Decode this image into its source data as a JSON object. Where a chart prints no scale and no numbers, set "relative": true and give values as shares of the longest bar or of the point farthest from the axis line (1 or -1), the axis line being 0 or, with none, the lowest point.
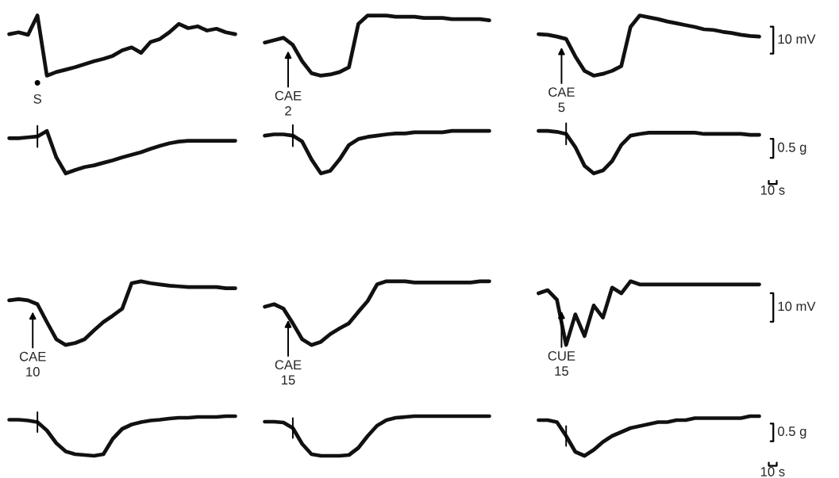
{
  "chart_data": [
    {
      "type": "line",
      "relative": true,
      "categories": [
        null,
        null,
        null,
        null,
        null,
        null,
        null,
        null,
        null,
        null,
        null,
        null,
        null,
        null,
        null,
        null,
        null,
        null,
        null,
        null,
        null,
        null,
        null,
        null,
        null
      ],
      "annotations": [
        "S"
      ],
      "series": [
        {
          "color": "#111111",
          "values": [
            0.69,
            0.72,
            0.68,
            1,
            0,
            0.06,
            0.1,
            0.14,
            0.19,
            0.24,
            0.28,
            0.33,
            0.42,
            0.47,
            0.38,
            0.56,
            0.61,
            0.72,
            0.86,
            0.79,
            0.82,
            0.75,
            0.78,
            0.72,
            0.69
          ]
        }
      ]
    },
    {
      "type": "line",
      "relative": true,
      "categories": [
        null,
        null,
        null,
        null,
        null,
        null,
        null,
        null,
        null,
        null,
        null,
        null,
        null,
        null,
        null,
        null,
        null,
        null,
        null,
        null,
        null,
        null,
        null,
        null,
        null
      ],
      "annotations": [
        "CAE\n2"
      ],
      "series": [
        {
          "color": "#111111",
          "values": [
            0.55,
            0.59,
            0.63,
            0.51,
            0.24,
            0.04,
            0,
            0.02,
            0.06,
            0.14,
            0.86,
            1,
            1,
            1,
            0.98,
            0.98,
            0.98,
            0.96,
            0.96,
            0.96,
            0.94,
            0.94,
            0.94,
            0.94,
            0.92
          ]
        }
      ]
    },
    {
      "type": "line",
      "relative": true,
      "categories": [
        null,
        null,
        null,
        null,
        null,
        null,
        null,
        null,
        null,
        null,
        null,
        null,
        null,
        null,
        null,
        null,
        null,
        null,
        null,
        null,
        null,
        null,
        null,
        null,
        null
      ],
      "annotations": [
        "CAE\n5"
      ],
      "ylabel": "10 mV",
      "series": [
        {
          "color": "#111111",
          "values": [
            0.69,
            0.68,
            0.65,
            0.61,
            0.32,
            0.08,
            0,
            0.03,
            0.08,
            0.16,
            0.81,
            1,
            0.97,
            0.94,
            0.9,
            0.87,
            0.84,
            0.81,
            0.77,
            0.76,
            0.73,
            0.71,
            0.68,
            0.66,
            0.65
          ]
        }
      ]
    },
    {
      "type": "line",
      "relative": true,
      "categories": [
        null,
        null,
        null,
        null,
        null,
        null,
        null,
        null,
        null,
        null,
        null,
        null,
        null,
        null,
        null,
        null,
        null,
        null,
        null,
        null,
        null,
        null,
        null,
        null,
        null
      ],
      "series": [
        {
          "color": "#111111",
          "values": [
            0.83,
            0.83,
            0.85,
            0.87,
            1,
            0.38,
            0,
            0.08,
            0.15,
            0.19,
            0.25,
            0.31,
            0.38,
            0.44,
            0.5,
            0.58,
            0.65,
            0.71,
            0.75,
            0.77,
            0.77,
            0.77,
            0.77,
            0.77,
            0.77
          ]
        }
      ]
    },
    {
      "type": "line",
      "relative": true,
      "categories": [
        null,
        null,
        null,
        null,
        null,
        null,
        null,
        null,
        null,
        null,
        null,
        null,
        null,
        null,
        null,
        null,
        null,
        null,
        null,
        null,
        null,
        null,
        null,
        null,
        null
      ],
      "series": [
        {
          "color": "#111111",
          "values": [
            0.89,
            0.92,
            0.92,
            0.89,
            0.75,
            0.33,
            0,
            0.06,
            0.33,
            0.67,
            0.81,
            0.86,
            0.89,
            0.92,
            0.94,
            0.94,
            0.97,
            0.97,
            0.97,
            0.97,
            1,
            1,
            1,
            1,
            1
          ]
        }
      ]
    },
    {
      "type": "line",
      "relative": true,
      "categories": [
        null,
        null,
        null,
        null,
        null,
        null,
        null,
        null,
        null,
        null,
        null,
        null,
        null,
        null,
        null,
        null,
        null,
        null,
        null,
        null,
        null,
        null,
        null,
        null,
        null
      ],
      "ylabel": "0.5 g",
      "xlabel": "10 s",
      "series": [
        {
          "color": "#111111",
          "values": [
            1,
            1,
            0.98,
            0.93,
            0.62,
            0.18,
            0,
            0.07,
            0.29,
            0.67,
            0.89,
            0.93,
            0.96,
            0.96,
            0.96,
            0.96,
            0.96,
            0.96,
            0.93,
            0.93,
            0.93,
            0.93,
            0.93,
            0.91,
            0.91
          ]
        }
      ]
    },
    {
      "type": "line",
      "relative": true,
      "categories": [
        null,
        null,
        null,
        null,
        null,
        null,
        null,
        null,
        null,
        null,
        null,
        null,
        null,
        null,
        null,
        null,
        null,
        null,
        null,
        null,
        null,
        null,
        null,
        null,
        null
      ],
      "annotations": [
        "CAE\n10"
      ],
      "series": [
        {
          "color": "#111111",
          "values": [
            0.7,
            0.72,
            0.7,
            0.64,
            0.36,
            0.09,
            0,
            0.03,
            0.09,
            0.23,
            0.36,
            0.46,
            0.57,
            0.97,
            1,
            0.97,
            0.95,
            0.93,
            0.92,
            0.91,
            0.91,
            0.91,
            0.91,
            0.89,
            0.89
          ]
        }
      ]
    },
    {
      "type": "line",
      "relative": true,
      "categories": [
        null,
        null,
        null,
        null,
        null,
        null,
        null,
        null,
        null,
        null,
        null,
        null,
        null,
        null,
        null,
        null,
        null,
        null,
        null,
        null,
        null,
        null,
        null,
        null,
        null
      ],
      "annotations": [
        "CAE\n15"
      ],
      "series": [
        {
          "color": "#111111",
          "values": [
            0.6,
            0.64,
            0.57,
            0.34,
            0.09,
            0,
            0.05,
            0.17,
            0.26,
            0.34,
            0.52,
            0.69,
            0.95,
            1,
            1,
            1,
            0.98,
            0.98,
            0.98,
            0.98,
            0.98,
            0.98,
            0.98,
            1,
            1
          ]
        }
      ]
    },
    {
      "type": "line",
      "relative": true,
      "categories": [
        null,
        null,
        null,
        null,
        null,
        null,
        null,
        null,
        null,
        null,
        null,
        null,
        null,
        null,
        null,
        null,
        null,
        null,
        null,
        null,
        null,
        null,
        null,
        null,
        null
      ],
      "annotations": [
        "CUE\n15"
      ],
      "ylabel": "10 mV",
      "series": [
        {
          "color": "#111111",
          "values": [
            0.81,
            0.86,
            0.71,
            0,
            0.48,
            0.14,
            0.62,
            0.43,
            0.9,
            0.81,
            1,
            0.95,
            0.95,
            0.95,
            0.95,
            0.95,
            0.95,
            0.95,
            0.95,
            0.95,
            0.95,
            0.95,
            0.95,
            0.95,
            0.95
          ]
        }
      ]
    },
    {
      "type": "line",
      "relative": true,
      "categories": [
        null,
        null,
        null,
        null,
        null,
        null,
        null,
        null,
        null,
        null,
        null,
        null,
        null,
        null,
        null,
        null,
        null,
        null,
        null,
        null,
        null,
        null,
        null,
        null,
        null
      ],
      "series": [
        {
          "color": "#111111",
          "values": [
            0.91,
            0.91,
            0.89,
            0.85,
            0.64,
            0.32,
            0.11,
            0.04,
            0.02,
            0,
            0.04,
            0.43,
            0.68,
            0.79,
            0.85,
            0.89,
            0.91,
            0.94,
            0.96,
            0.96,
            0.98,
            0.98,
            0.98,
            1,
            1
          ]
        }
      ]
    },
    {
      "type": "line",
      "relative": true,
      "categories": [
        null,
        null,
        null,
        null,
        null,
        null,
        null,
        null,
        null,
        null,
        null,
        null,
        null,
        null,
        null,
        null,
        null,
        null,
        null,
        null,
        null,
        null,
        null,
        null,
        null
      ],
      "series": [
        {
          "color": "#111111",
          "values": [
            0.86,
            0.86,
            0.84,
            0.7,
            0.3,
            0.04,
            0,
            0,
            0,
            0.02,
            0.2,
            0.5,
            0.76,
            0.9,
            0.96,
            0.98,
            1,
            1,
            1,
            1,
            1,
            1,
            1,
            1,
            1
          ]
        }
      ]
    },
    {
      "type": "line",
      "relative": true,
      "categories": [
        null,
        null,
        null,
        null,
        null,
        null,
        null,
        null,
        null,
        null,
        null,
        null,
        null,
        null,
        null,
        null,
        null,
        null,
        null,
        null,
        null,
        null,
        null,
        null,
        null
      ],
      "ylabel": "0.5 g",
      "xlabel": "10 s",
      "series": [
        {
          "color": "#111111",
          "values": [
            0.9,
            0.9,
            0.85,
            0.5,
            0.1,
            0,
            0.15,
            0.35,
            0.5,
            0.6,
            0.7,
            0.75,
            0.8,
            0.85,
            0.85,
            0.9,
            0.9,
            0.95,
            0.95,
            0.95,
            0.95,
            0.95,
            0.95,
            1,
            1
          ]
        }
      ]
    }
  ]
}
